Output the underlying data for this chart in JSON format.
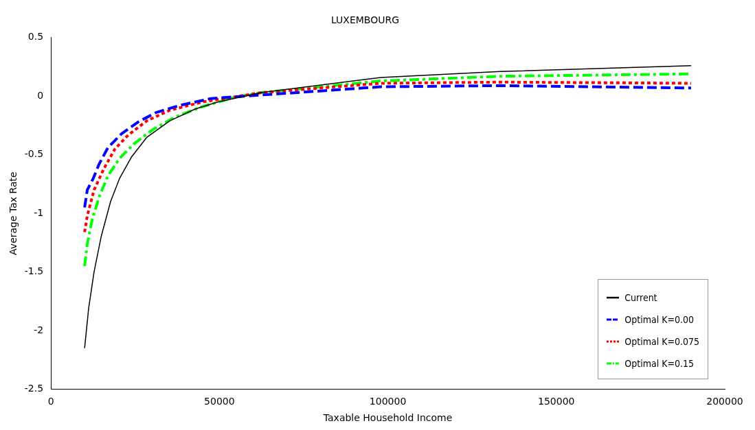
{
  "chart_data": {
    "type": "line",
    "title": "LUXEMBOURG",
    "xlabel": "Taxable Household Income",
    "ylabel": "Average Tax Rate",
    "xlim": [
      0,
      200000
    ],
    "xticks": [
      0,
      50000,
      100000,
      150000,
      200000
    ],
    "ylim": [
      -2.5,
      0.5
    ],
    "yticks": [
      -2.5,
      -2,
      -1.5,
      -1,
      -0.5,
      0,
      0.5
    ],
    "grid": false,
    "legend": "bottom right",
    "marker": "none",
    "series": [
      {
        "name": "Current",
        "color": "#000000",
        "line_style": "solid",
        "x": [
          10000,
          11200,
          12800,
          14900,
          17700,
          20400,
          23900,
          28500,
          35300,
          42800,
          49500,
          62400,
          97900,
          133300,
          190000
        ],
        "values": [
          -2.15,
          -1.81,
          -1.5,
          -1.2,
          -0.9,
          -0.7,
          -0.52,
          -0.35,
          -0.21,
          -0.11,
          -0.05,
          0.03,
          0.16,
          0.21,
          0.26
        ]
      },
      {
        "name": "Optimal K=0.00",
        "color": "#0000ff",
        "line_style": "dashed",
        "x": [
          10000,
          10800,
          12600,
          14300,
          16900,
          21000,
          25900,
          31200,
          38100,
          47500,
          62400,
          97900,
          133300,
          190000
        ],
        "values": [
          -0.95,
          -0.8,
          -0.7,
          -0.58,
          -0.44,
          -0.32,
          -0.22,
          -0.14,
          -0.08,
          -0.02,
          0.01,
          0.08,
          0.09,
          0.07
        ]
      },
      {
        "name": "Optimal K=0.075",
        "color": "#ff0000",
        "line_style": "dotted",
        "x": [
          10000,
          10800,
          12800,
          15700,
          19000,
          23000,
          28500,
          35300,
          44900,
          62400,
          97900,
          133300,
          190000
        ],
        "values": [
          -1.16,
          -1.02,
          -0.8,
          -0.62,
          -0.45,
          -0.33,
          -0.21,
          -0.12,
          -0.05,
          0.03,
          0.11,
          0.12,
          0.11
        ]
      },
      {
        "name": "Optimal K=0.15",
        "color": "#00ff00",
        "line_style": "dashdot",
        "x": [
          10000,
          10800,
          12200,
          14300,
          16900,
          20400,
          24500,
          30000,
          36700,
          44900,
          54400,
          62400,
          97900,
          133300,
          190000
        ],
        "values": [
          -1.45,
          -1.26,
          -1.06,
          -0.86,
          -0.68,
          -0.53,
          -0.41,
          -0.29,
          -0.18,
          -0.09,
          -0.01,
          0.03,
          0.13,
          0.17,
          0.19
        ]
      }
    ]
  }
}
